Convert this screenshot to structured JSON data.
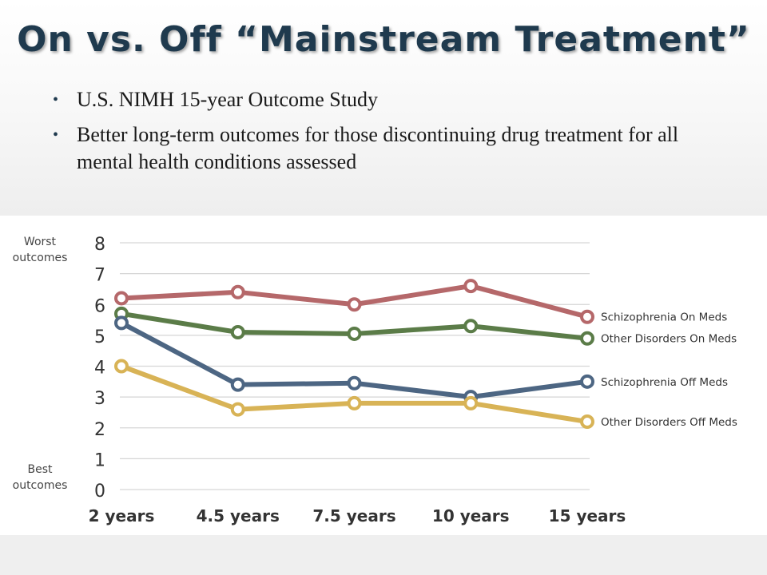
{
  "slide": {
    "title": "On vs. Off “Mainstream Treatment”",
    "bullets": [
      "U.S. NIMH 15-year Outcome Study",
      "Better long-term outcomes for those discontinuing drug treatment for all mental health conditions assessed"
    ]
  },
  "chart_data": {
    "type": "line",
    "title": "",
    "xlabel": "",
    "ylabel": "",
    "ylim": [
      0,
      8
    ],
    "yticks": [
      "0",
      "1",
      "2",
      "3",
      "4",
      "5",
      "6",
      "7",
      "8"
    ],
    "categories": [
      "2 years",
      "4.5 years",
      "7.5 years",
      "10 years",
      "15 years"
    ],
    "axis_annotations": {
      "top": [
        "Worst",
        "outcomes"
      ],
      "bottom": [
        "Best",
        "outcomes"
      ]
    },
    "grid": true,
    "legend": "end-of-line labels",
    "series": [
      {
        "name": "Schizophrenia On Meds",
        "color": "#b5686a",
        "values": [
          6.2,
          6.4,
          6.0,
          6.6,
          5.6
        ]
      },
      {
        "name": "Other Disorders On Meds",
        "color": "#5b7c48",
        "values": [
          5.7,
          5.1,
          5.05,
          5.3,
          4.9
        ]
      },
      {
        "name": "Schizophrenia Off Meds",
        "color": "#4d6683",
        "values": [
          5.4,
          3.4,
          3.45,
          3.0,
          3.5
        ]
      },
      {
        "name": "Other Disorders Off Meds",
        "color": "#d8b356",
        "values": [
          4.0,
          2.6,
          2.8,
          2.8,
          2.2
        ]
      }
    ]
  }
}
